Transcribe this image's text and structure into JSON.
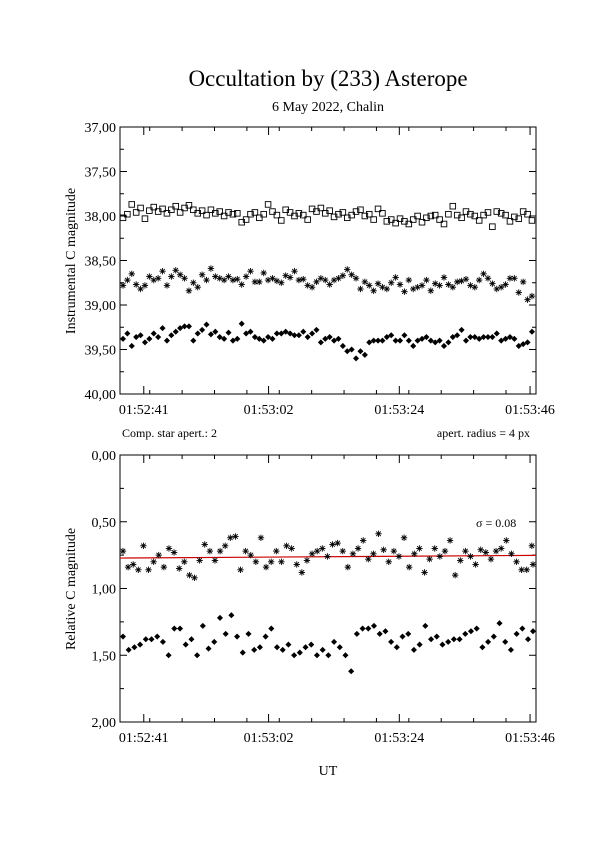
{
  "header": {
    "title": "Occultation by (233) Asterope",
    "subtitle": "6 May 2022, Chalin"
  },
  "chart_data": [
    {
      "type": "scatter",
      "ylabel": "Instrumental C magnitude",
      "xlabel": "",
      "ylim": [
        37.0,
        40.0
      ],
      "y_inverted": true,
      "y_ticks": [
        "37,00",
        "37,50",
        "38,00",
        "38,50",
        "39,00",
        "39,50",
        "40,00"
      ],
      "x_ticks": [
        "01:52:41",
        "01:53:02",
        "01:53:24",
        "01:53:46"
      ],
      "x_tick_seconds": [
        41,
        62,
        84,
        106
      ],
      "xlim_seconds": [
        37,
        107
      ],
      "annotations": {
        "left": "Comp. star apert.: 2",
        "right": "apert. radius = 4 px"
      },
      "series": [
        {
          "marker": "square",
          "values": [
            38.02,
            37.98,
            37.87,
            37.96,
            37.91,
            38.03,
            37.94,
            37.9,
            37.95,
            37.92,
            37.97,
            37.93,
            37.89,
            37.96,
            37.91,
            37.88,
            37.93,
            37.97,
            37.94,
            37.99,
            37.93,
            37.97,
            37.95,
            38.0,
            37.96,
            37.98,
            37.97,
            38.07,
            38.04,
            37.98,
            37.96,
            38.02,
            37.98,
            37.87,
            37.95,
            37.99,
            38.05,
            37.93,
            37.96,
            38.0,
            37.97,
            37.99,
            38.04,
            37.92,
            37.95,
            37.91,
            37.97,
            37.94,
            38.01,
            37.98,
            37.96,
            38.02,
            37.99,
            37.95,
            37.93,
            38.0,
            37.98,
            38.04,
            37.92,
            37.97,
            38.06,
            38.04,
            38.08,
            38.03,
            38.06,
            38.09,
            38.04,
            38.0,
            38.07,
            38.02,
            38.0,
            37.99,
            38.04,
            38.09,
            37.98,
            37.89,
            37.99,
            38.02,
            37.95,
            37.98,
            38.0,
            38.05,
            37.99,
            37.96,
            38.12,
            37.95,
            37.97,
            37.99,
            38.06,
            38.01,
            38.03,
            37.95,
            37.98,
            38.05
          ],
          "x_start": 37.0,
          "x_step": 0.74
        },
        {
          "marker": "asterisk",
          "values": [
            38.78,
            38.72,
            38.65,
            38.77,
            38.82,
            38.78,
            38.68,
            38.72,
            38.7,
            38.62,
            38.78,
            38.68,
            38.61,
            38.66,
            38.7,
            38.84,
            38.75,
            38.8,
            38.66,
            38.72,
            38.59,
            38.68,
            38.7,
            38.72,
            38.68,
            38.72,
            38.71,
            38.77,
            38.68,
            38.62,
            38.74,
            38.74,
            38.64,
            38.72,
            38.7,
            38.73,
            38.75,
            38.67,
            38.69,
            38.62,
            38.72,
            38.71,
            38.78,
            38.8,
            38.74,
            38.7,
            38.72,
            38.77,
            38.72,
            38.7,
            38.67,
            38.6,
            38.66,
            38.7,
            38.82,
            38.74,
            38.78,
            38.84,
            38.76,
            38.8,
            38.82,
            38.75,
            38.69,
            38.77,
            38.85,
            38.72,
            38.82,
            38.8,
            38.78,
            38.72,
            38.84,
            38.76,
            38.78,
            38.69,
            38.77,
            38.8,
            38.74,
            38.73,
            38.71,
            38.78,
            38.8,
            38.72,
            38.65,
            38.7,
            38.76,
            38.82,
            38.8,
            38.77,
            38.7,
            38.7,
            38.86,
            38.74,
            38.94,
            38.9
          ],
          "x_start": 37.0,
          "x_step": 0.74
        },
        {
          "marker": "diamond",
          "values": [
            39.38,
            39.32,
            39.46,
            39.36,
            39.34,
            39.42,
            39.38,
            39.32,
            39.36,
            39.26,
            39.4,
            39.34,
            39.3,
            39.26,
            39.24,
            39.24,
            39.4,
            39.32,
            39.28,
            39.22,
            39.33,
            39.3,
            39.36,
            39.38,
            39.31,
            39.4,
            39.38,
            39.21,
            39.32,
            39.3,
            39.36,
            39.38,
            39.4,
            39.36,
            39.38,
            39.32,
            39.32,
            39.3,
            39.32,
            39.34,
            39.34,
            39.3,
            39.36,
            39.32,
            39.28,
            39.42,
            39.38,
            39.36,
            39.4,
            39.38,
            39.46,
            39.52,
            39.5,
            39.6,
            39.52,
            39.56,
            39.42,
            39.4,
            39.4,
            39.4,
            39.36,
            39.34,
            39.4,
            39.4,
            39.34,
            39.4,
            39.46,
            39.4,
            39.38,
            39.36,
            39.4,
            39.42,
            39.4,
            39.46,
            39.42,
            39.36,
            39.34,
            39.28,
            39.4,
            39.36,
            39.36,
            39.38,
            39.36,
            39.36,
            39.36,
            39.32,
            39.4,
            39.38,
            39.36,
            39.38,
            39.46,
            39.44,
            39.42,
            39.3
          ],
          "x_start": 37.0,
          "x_step": 0.74
        }
      ]
    },
    {
      "type": "scatter",
      "ylabel": "Relative C magnitude",
      "xlabel": "UT",
      "ylim": [
        0.0,
        2.0
      ],
      "y_inverted": true,
      "y_ticks": [
        "0,00",
        "0,50",
        "1,00",
        "1,50",
        "2,00"
      ],
      "x_ticks": [
        "01:52:41",
        "01:53:02",
        "01:53:24",
        "01:53:46"
      ],
      "x_tick_seconds": [
        41,
        62,
        84,
        106
      ],
      "xlim_seconds": [
        37,
        107
      ],
      "annotations": {
        "sigma": "σ = 0.08"
      },
      "fit_line": {
        "y_start": 0.772,
        "y_end": 0.752,
        "color": "#cc0000"
      },
      "series": [
        {
          "marker": "asterisk",
          "values": [
            0.72,
            0.84,
            0.82,
            0.86,
            0.68,
            0.86,
            0.8,
            0.75,
            0.84,
            0.7,
            0.73,
            0.85,
            0.8,
            0.9,
            0.92,
            0.79,
            0.67,
            0.72,
            0.79,
            0.72,
            0.68,
            0.62,
            0.61,
            0.86,
            0.72,
            0.75,
            0.8,
            0.62,
            0.84,
            0.8,
            0.72,
            0.8,
            0.68,
            0.7,
            0.82,
            0.88,
            0.79,
            0.74,
            0.72,
            0.7,
            0.76,
            0.67,
            0.66,
            0.72,
            0.84,
            0.74,
            0.7,
            0.64,
            0.78,
            0.74,
            0.59,
            0.71,
            0.8,
            0.72,
            0.76,
            0.62,
            0.84,
            0.74,
            0.7,
            0.88,
            0.78,
            0.7,
            0.76,
            0.72,
            0.64,
            0.9,
            0.79,
            0.72,
            0.76,
            0.82,
            0.71,
            0.73,
            0.78,
            0.72,
            0.7,
            0.64,
            0.74,
            0.8,
            0.86,
            0.86,
            0.68,
            0.82
          ],
          "x_start": 37.0,
          "x_step": 0.86
        },
        {
          "marker": "diamond",
          "values": [
            1.36,
            1.46,
            1.44,
            1.42,
            1.38,
            1.38,
            1.36,
            1.4,
            1.5,
            1.3,
            1.3,
            1.42,
            1.38,
            1.5,
            1.28,
            1.45,
            1.4,
            1.22,
            1.34,
            1.2,
            1.36,
            1.48,
            1.34,
            1.46,
            1.44,
            1.36,
            1.3,
            1.44,
            1.46,
            1.42,
            1.5,
            1.48,
            1.44,
            1.42,
            1.5,
            1.46,
            1.5,
            1.4,
            1.44,
            1.5,
            1.62,
            1.34,
            1.3,
            1.3,
            1.28,
            1.34,
            1.32,
            1.4,
            1.44,
            1.36,
            1.34,
            1.46,
            1.42,
            1.28,
            1.38,
            1.36,
            1.42,
            1.4,
            1.38,
            1.38,
            1.34,
            1.32,
            1.3,
            1.44,
            1.4,
            1.36,
            1.26,
            1.4,
            1.46,
            1.34,
            1.3,
            1.38,
            1.32
          ],
          "x_start": 37.0,
          "x_step": 0.96
        }
      ]
    }
  ]
}
